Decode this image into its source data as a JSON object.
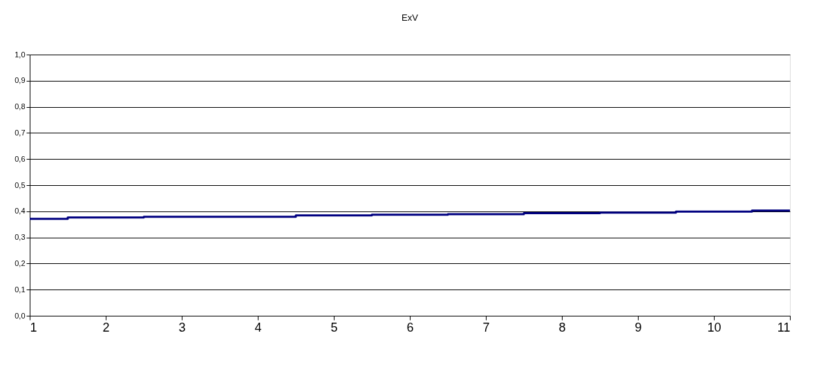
{
  "chart_data": {
    "type": "step",
    "title": "ExV",
    "x": [
      1,
      2,
      3,
      4,
      5,
      6,
      7,
      8,
      9,
      10,
      11
    ],
    "series": [
      {
        "color": "#000080",
        "values": [
          0.371,
          0.376,
          0.379,
          0.379,
          0.384,
          0.387,
          0.389,
          0.393,
          0.395,
          0.399,
          0.403
        ]
      }
    ],
    "xlim": [
      1,
      11
    ],
    "xticks": [
      1,
      2,
      3,
      4,
      5,
      6,
      7,
      8,
      9,
      10,
      11
    ],
    "ylim": [
      0,
      1
    ],
    "yticks": [
      {
        "value": 0,
        "label": "0,0"
      },
      {
        "value": 0.1,
        "label": "0,1"
      },
      {
        "value": 0.2,
        "label": "0,2"
      },
      {
        "value": 0.3,
        "label": "0,3"
      },
      {
        "value": 0.4,
        "label": "0,4"
      },
      {
        "value": 0.5,
        "label": "0,5"
      },
      {
        "value": 0.6,
        "label": "0,6"
      },
      {
        "value": 0.7,
        "label": "0,7"
      },
      {
        "value": 0.8,
        "label": "0,8"
      },
      {
        "value": 0.9,
        "label": "0,9"
      },
      {
        "value": 1,
        "label": "1,0"
      }
    ],
    "grid": "y",
    "legend": false,
    "marker": "none",
    "line_style": "solid"
  }
}
